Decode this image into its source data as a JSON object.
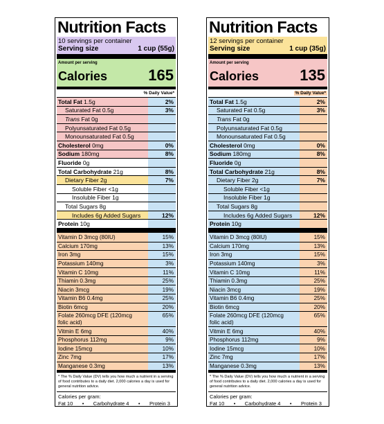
{
  "labels": [
    {
      "title": "Nutrition Facts",
      "servings": "10 servings per container",
      "serving_size_label": "Serving size",
      "serving_size_value": "1 cup (55g)",
      "amount_per_serving": "Amount per serving",
      "calories_label": "Calories",
      "calories_value": "165",
      "dv_header": "% Daily Value*",
      "nutrients": [
        {
          "name_bold": "Total Fat",
          "name": " 1.5g",
          "dv": "2%"
        },
        {
          "name_bold": "",
          "name": "Saturated Fat 0.5g",
          "dv": "3%"
        },
        {
          "name_bold": "",
          "name": "Trans Fat 0g",
          "dv": ""
        },
        {
          "name_bold": "",
          "name": "Polyunsaturated Fat 0.5g",
          "dv": ""
        },
        {
          "name_bold": "",
          "name": "Monounsaturated Fat 0.5g",
          "dv": ""
        },
        {
          "name_bold": "Cholesterol",
          "name": " 0mg",
          "dv": "0%"
        },
        {
          "name_bold": "Sodium",
          "name": " 180mg",
          "dv": "8%"
        },
        {
          "name_bold": "Fluoride",
          "name": " 0g",
          "dv": ""
        },
        {
          "name_bold": "Total Carbohydrate",
          "name": " 21g",
          "dv": "8%"
        },
        {
          "name_bold": "",
          "name": "Dietary Fiber 2g",
          "dv": "7%"
        },
        {
          "name_bold": "",
          "name": "Soluble Fiber <1g",
          "dv": ""
        },
        {
          "name_bold": "",
          "name": "Insoluble Fiber 1g",
          "dv": ""
        },
        {
          "name_bold": "",
          "name": "Total Sugars 8g",
          "dv": ""
        },
        {
          "name_bold": "",
          "name": "Includes 6g Added Sugars",
          "dv": "12%"
        },
        {
          "name_bold": "Protein",
          "name": " 10g",
          "dv": ""
        }
      ],
      "vitamins": [
        {
          "name": "Vitamin D 3mcg (80IU)",
          "dv": "15%"
        },
        {
          "name": "Calcium 170mg",
          "dv": "13%"
        },
        {
          "name": "Iron 3mg",
          "dv": "15%"
        },
        {
          "name": "Potassium 140mg",
          "dv": "3%"
        },
        {
          "name": "Vitamin C 10mg",
          "dv": "11%"
        },
        {
          "name": "Thiamin 0.3mg",
          "dv": "25%"
        },
        {
          "name": "Niacin 3mcg",
          "dv": "19%"
        },
        {
          "name": "Vitamin B6 0.4mg",
          "dv": "25%"
        },
        {
          "name": "Biotin 6mcg",
          "dv": "20%"
        },
        {
          "name": "Folate 260mcg DFE (120mcg folic acid)",
          "dv": "65%"
        },
        {
          "name": "Vitmin E 6mg",
          "dv": "40%"
        },
        {
          "name": "Phosphorus 112mg",
          "dv": "9%"
        },
        {
          "name": "Iodine 15mcg",
          "dv": "10%"
        },
        {
          "name": "Zinc 7mg",
          "dv": "17%"
        },
        {
          "name": "Manganese 0.3mg",
          "dv": "13%"
        }
      ],
      "footnote": "* The % Daily Value (DV) tells you how much a nutrient in a serving of food contributes to a daily diet. 2,000 calories a day is used for general nutrition advice.",
      "cpg_title": "Calories per gram:",
      "cpg_fat": "Fat 10",
      "cpg_carb": "Carbohydrate 4",
      "cpg_protein": "Protein 3",
      "colors": {
        "servings": "#d9c8f0",
        "calories": "#c4e8a8",
        "fat": "#f6c6c6",
        "dv_col": "#c8e2f4",
        "fiber": "#fbe39a",
        "vitamins": "#fbd3b0"
      }
    },
    {
      "title": "Nutrition Facts",
      "servings": "12 servings per container",
      "serving_size_label": "Serving size",
      "serving_size_value": "1 cup (35g)",
      "amount_per_serving": "Amount per serving",
      "calories_label": "Calories",
      "calories_value": "135",
      "dv_header": "% Daily Value*",
      "nutrients": [
        {
          "name_bold": "Total Fat",
          "name": " 1.5g",
          "dv": "2%"
        },
        {
          "name_bold": "",
          "name": "Saturated Fat 0.5g",
          "dv": "3%"
        },
        {
          "name_bold": "",
          "name": "Trans Fat 0g",
          "dv": ""
        },
        {
          "name_bold": "",
          "name": "Polyunsaturated Fat 0.5g",
          "dv": ""
        },
        {
          "name_bold": "",
          "name": "Monounsaturated Fat 0.5g",
          "dv": ""
        },
        {
          "name_bold": "Cholesterol",
          "name": " 0mg",
          "dv": "0%"
        },
        {
          "name_bold": "Sodium",
          "name": " 180mg",
          "dv": "8%"
        },
        {
          "name_bold": "Fluoride",
          "name": " 0g",
          "dv": ""
        },
        {
          "name_bold": "Total Carbohydrate",
          "name": " 21g",
          "dv": "8%"
        },
        {
          "name_bold": "",
          "name": "Dietary Fiber 2g",
          "dv": "7%"
        },
        {
          "name_bold": "",
          "name": "Soluble Fiber <1g",
          "dv": ""
        },
        {
          "name_bold": "",
          "name": "Insoluble Fiber 1g",
          "dv": ""
        },
        {
          "name_bold": "",
          "name": "Total Sugars 8g",
          "dv": ""
        },
        {
          "name_bold": "",
          "name": "Includes 6g Added Sugars",
          "dv": "12%"
        },
        {
          "name_bold": "Protein",
          "name": " 10g",
          "dv": ""
        }
      ],
      "vitamins": [
        {
          "name": "Vitamin D 3mcg (80IU)",
          "dv": "15%"
        },
        {
          "name": "Calcium 170mg",
          "dv": "13%"
        },
        {
          "name": "Iron 3mg",
          "dv": "15%"
        },
        {
          "name": "Potassium 140mg",
          "dv": "3%"
        },
        {
          "name": "Vitamin C 10mg",
          "dv": "11%"
        },
        {
          "name": "Thiamin 0.3mg",
          "dv": "25%"
        },
        {
          "name": "Niacin 3mcg",
          "dv": "19%"
        },
        {
          "name": "Vitamin B6 0.4mg",
          "dv": "25%"
        },
        {
          "name": "Biotin 6mcg",
          "dv": "20%"
        },
        {
          "name": "Folate 260mcg DFE (120mcg folic acid)",
          "dv": "65%"
        },
        {
          "name": "Vitmin E 6mg",
          "dv": "40%"
        },
        {
          "name": "Phosphorus 112mg",
          "dv": "9%"
        },
        {
          "name": "Iodine 15mcg",
          "dv": "10%"
        },
        {
          "name": "Zinc 7mg",
          "dv": "17%"
        },
        {
          "name": "Manganese 0.3mg",
          "dv": "13%"
        }
      ],
      "footnote": "* The % Daily Value (DV) tells you how much a nutrient in a serving of food contributes to a daily diet. 2,000 calories a day is used for general nutrition advice.",
      "cpg_title": "Calories per gram:",
      "cpg_fat": "Fat 10",
      "cpg_carb": "Carbohydrate 4",
      "cpg_protein": "Protein 3",
      "colors": {
        "servings": "#fbe39a",
        "calories": "#f6c6c6",
        "fat": "#c8e2f4",
        "dv_col": "#fbd3b0",
        "fiber": "#c8e2f4",
        "vitamins": "#c8e2f4"
      }
    }
  ]
}
